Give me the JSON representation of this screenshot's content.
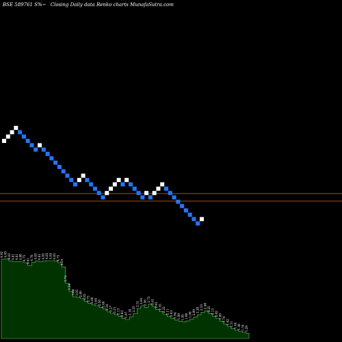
{
  "title": {
    "symbol": "BSE 589761 S%~",
    "description": "Closing Daily data  Renko  charts MunafaSutra.com"
  },
  "colors": {
    "background": "#000000",
    "up_brick": "#ffffff",
    "down_brick": "#1e78ff",
    "ref_line": "#a0522d",
    "area_fill": "#003300",
    "area_line": "#66cc66",
    "label": "#ffffff"
  },
  "chart_data": [
    {
      "type": "renko",
      "directions": [
        "up",
        "up",
        "up",
        "up",
        "down",
        "down",
        "down",
        "down",
        "down",
        "up",
        "down",
        "down",
        "down",
        "down",
        "down",
        "down",
        "down",
        "down",
        "down",
        "up",
        "up",
        "down",
        "down",
        "down",
        "down",
        "down",
        "up",
        "up",
        "up",
        "up",
        "down",
        "up",
        "down",
        "down",
        "down",
        "down",
        "up",
        "down",
        "up",
        "up",
        "up",
        "down",
        "down",
        "down",
        "down",
        "down",
        "down",
        "down",
        "down",
        "down",
        "up"
      ],
      "reference_lines": 2,
      "grid": false,
      "legend": "none"
    },
    {
      "type": "area",
      "labels": [
        "4.92",
        "4.93",
        "4.83",
        "4.81",
        "4.81",
        "4.80",
        "4.75",
        "4.61",
        "4.76",
        "4.83",
        "4.81",
        "4.83",
        "4.85",
        "4.85",
        "4.83",
        "4.75",
        "4.54",
        "3.74",
        "3.34",
        "3.08",
        "3.05",
        "2.99",
        "2.85",
        "2.75",
        "2.68",
        "2.64",
        "2.56",
        "2.48",
        "2.34",
        "2.27",
        "2.21",
        "2.13",
        "2.03",
        "1.97",
        "2.10",
        "2.25",
        "2.51",
        "2.64",
        "2.56",
        "2.72",
        "2.61",
        "2.45",
        "2.35",
        "2.22",
        "2.11",
        "2.03",
        "1.94",
        "1.89",
        "1.85",
        "1.90",
        "1.98",
        "2.09",
        "2.20",
        "2.33",
        "2.40",
        "2.25",
        "2.13",
        "2.02",
        "1.89",
        "1.74",
        "1.62",
        "1.51",
        "1.44",
        "1.38",
        "1.34",
        "1.29"
      ],
      "grid": false,
      "legend": "none"
    }
  ]
}
